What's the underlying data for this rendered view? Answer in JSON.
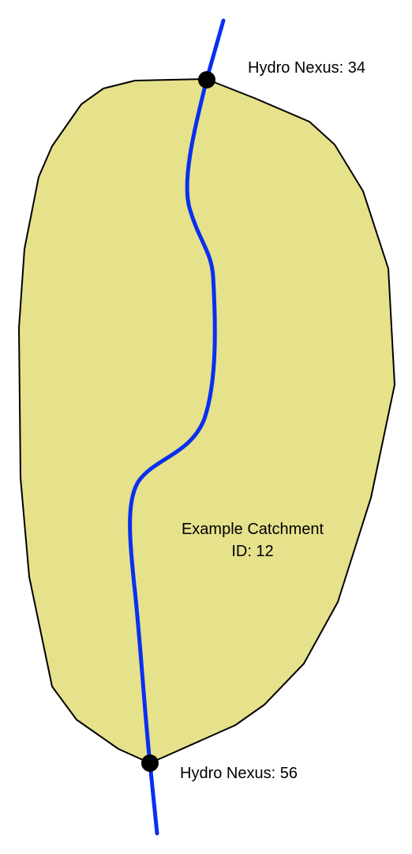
{
  "catchment": {
    "name_line": "Example Catchment",
    "id_line": "ID: 12",
    "fill_color": "#e6e18b",
    "stroke_color": "#000000"
  },
  "flowpath": {
    "color": "#0a2ff0"
  },
  "nexus": {
    "top_label": "Hydro Nexus: 34",
    "bottom_label": "Hydro Nexus: 56",
    "color": "#000000"
  }
}
